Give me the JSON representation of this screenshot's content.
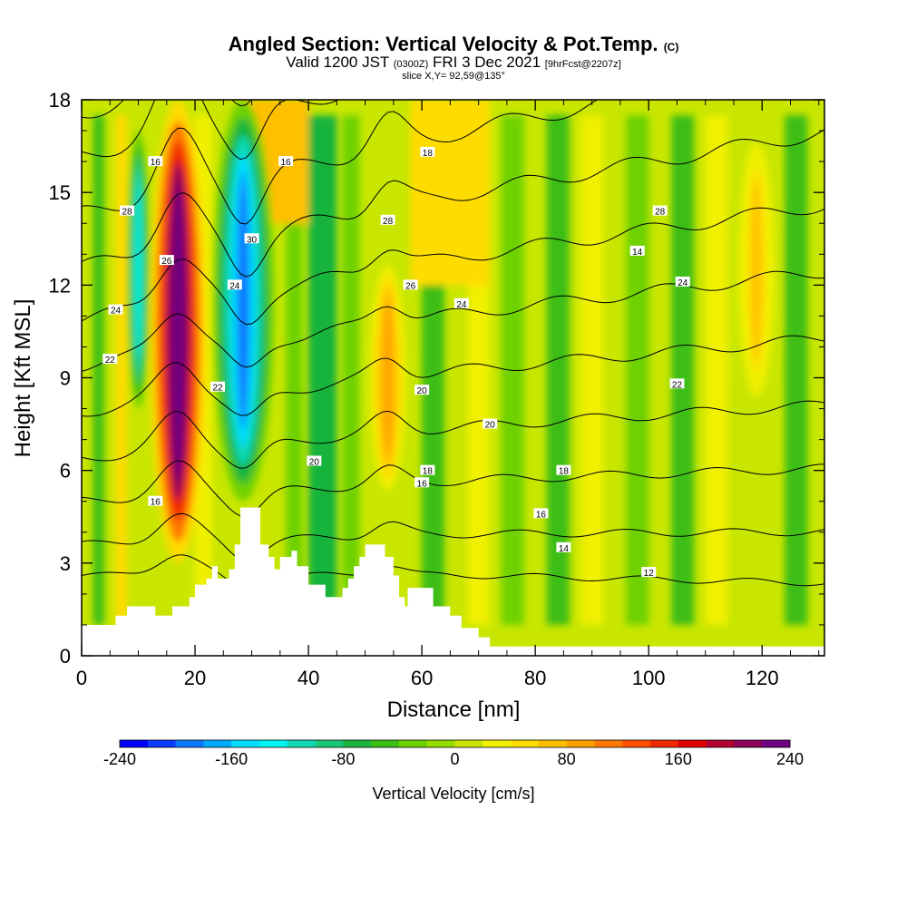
{
  "title": "Angled Section: Vertical Velocity & Pot.Temp.",
  "title_mark": "(C)",
  "subtitle_valid": "Valid 1200 JST",
  "subtitle_z": "(0300Z)",
  "subtitle_date": "FRI 3 Dec 2021",
  "subtitle_fcst": "[9hrFcst@2207z]",
  "slice_label": "slice X,Y= 92,59@135°",
  "chart_data": {
    "type": "heatmap",
    "xlabel": "Distance [nm]",
    "ylabel": "Height [Kft MSL]",
    "xlim": [
      0,
      131
    ],
    "ylim": [
      0,
      18
    ],
    "x_ticks": [
      0,
      20,
      40,
      60,
      80,
      100,
      120
    ],
    "y_ticks": [
      0,
      3,
      6,
      9,
      12,
      15,
      18
    ],
    "colorbar": {
      "label": "Vertical Velocity [cm/s]",
      "range": [
        -240,
        240
      ],
      "ticks": [
        "-240",
        "-160",
        "-80",
        "0",
        "80",
        "160",
        "240"
      ],
      "colors": [
        "#0000ff",
        "#0a3cff",
        "#0a78ff",
        "#00aaff",
        "#00ddff",
        "#00f5f0",
        "#10d8b4",
        "#18c878",
        "#18b43c",
        "#3cbe14",
        "#6ed200",
        "#96dc00",
        "#c8e600",
        "#f0f000",
        "#ffdc00",
        "#ffc000",
        "#ffa000",
        "#ff7800",
        "#ff5000",
        "#f02800",
        "#e00000",
        "#b40032",
        "#8c005a",
        "#6e0082"
      ]
    },
    "theta_contour_labels": [
      "12",
      "14",
      "16",
      "16",
      "16",
      "18",
      "18",
      "20",
      "20",
      "20",
      "22",
      "22",
      "22",
      "24",
      "24",
      "24",
      "24",
      "26",
      "26",
      "28",
      "28",
      "28",
      "30",
      "14",
      "16",
      "18",
      "16"
    ],
    "vertical_velocity_cells": [
      {
        "x_range": [
          12,
          22
        ],
        "y_range": [
          3,
          18
        ],
        "peak_cm_s": 260,
        "sign": "up"
      },
      {
        "x_range": [
          23,
          34
        ],
        "y_range": [
          5,
          18
        ],
        "peak_cm_s": -200,
        "sign": "down"
      },
      {
        "x_range": [
          8,
          12
        ],
        "y_range": [
          8,
          17
        ],
        "peak_cm_s": -140,
        "sign": "down"
      },
      {
        "x_range": [
          50,
          58
        ],
        "y_range": [
          5,
          13
        ],
        "peak_cm_s": 90,
        "sign": "up"
      },
      {
        "x_range": [
          115,
          123
        ],
        "y_range": [
          8,
          17
        ],
        "peak_cm_s": 60,
        "sign": "up"
      }
    ],
    "terrain_top_kft": [
      [
        0,
        1
      ],
      [
        5,
        1
      ],
      [
        6,
        1.3
      ],
      [
        8,
        1.6
      ],
      [
        12,
        1.6
      ],
      [
        13,
        1.3
      ],
      [
        15,
        1.3
      ],
      [
        16,
        1.6
      ],
      [
        19,
        1.9
      ],
      [
        20,
        2.3
      ],
      [
        22,
        2.5
      ],
      [
        23,
        2.9
      ],
      [
        24,
        2.5
      ],
      [
        26,
        2.8
      ],
      [
        27,
        3.6
      ],
      [
        28,
        4.8
      ],
      [
        31,
        4.8
      ],
      [
        31.5,
        3.6
      ],
      [
        33,
        3.2
      ],
      [
        34,
        2.8
      ],
      [
        35,
        3.2
      ],
      [
        37,
        3.4
      ],
      [
        38,
        2.9
      ],
      [
        40,
        2.3
      ],
      [
        42,
        2.3
      ],
      [
        43,
        1.9
      ],
      [
        45,
        1.9
      ],
      [
        46,
        2.2
      ],
      [
        47,
        2.5
      ],
      [
        48,
        2.9
      ],
      [
        49,
        3.2
      ],
      [
        50,
        3.6
      ],
      [
        53,
        3.6
      ],
      [
        53.5,
        3.2
      ],
      [
        55,
        2.6
      ],
      [
        56,
        1.9
      ],
      [
        57,
        1.6
      ],
      [
        57.5,
        2.2
      ],
      [
        61,
        2.2
      ],
      [
        62,
        1.6
      ],
      [
        65,
        1.3
      ],
      [
        67,
        0.9
      ],
      [
        70,
        0.6
      ],
      [
        72,
        0.3
      ],
      [
        131,
        0.3
      ]
    ]
  }
}
